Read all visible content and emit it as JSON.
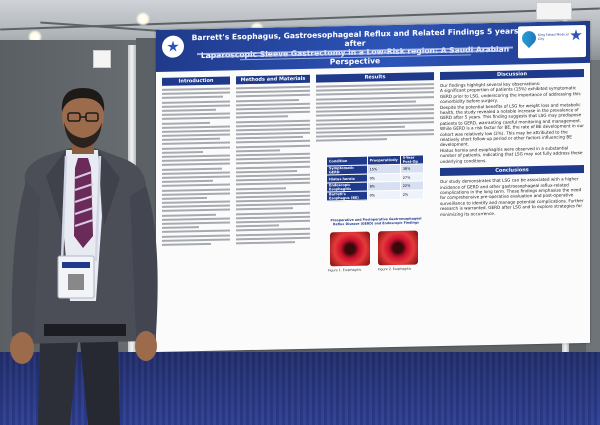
{
  "poster": {
    "title_line1": "Barrett's Esophagus, Gastroesophageal Reflux and Related Findings 5 years after",
    "title_line2": "Laparoscopic Sleeve Gastrectomy in a Low-Risk region: A Saudi Arabian Perspective",
    "sections": {
      "intro": "Introduction",
      "methods": "Methods and Materials",
      "results": "Results",
      "discussion": "Discussion",
      "conclusions": "Conclusions"
    },
    "results_text": "During the 5th post-op year, endoscopy (ECE 5 years ago; 109 potential patients). This resulted in the same: Ch: 5 years ago 5 years ago ... Prevalence ... (57.8%) 6 endoscopy ... The prevalence of BE is ... and the prevalence ... LSG without ... 36 Asian ... The endoscopy ...",
    "discussion_text": [
      "Our findings highlight several key observations:",
      "A significant proportion of patients (15%) exhibited symptomatic GERD prior to LSG, underscoring the importance of addressing this comorbidity before surgery.",
      "Despite the potential benefits of LSG for weight loss and metabolic health, the study revealed a notable increase in the prevalence of GERD after 5 years. This finding suggests that LSG may predispose patients to GERD, warranting careful monitoring and management.",
      "While GERD is a risk factor for BE, the rate of BE development in our cohort was relatively low (2%). This may be attributed to the relatively short follow-up period or other factors influencing BE development.",
      "Hiatus hernia and esophagitis were observed in a substantial number of patients, indicating that LSG may not fully address these underlying conditions."
    ],
    "conclusion_text": "Our study demonstrates that LSG can be associated with a higher incidence of GERD and other gastroesophageal reflux-related complications in the long term. These findings emphasize the need for comprehensive pre-operative evaluation and post-operative surveillance to identify and manage potential complications. Further research is warranted. GERD after LSG and to explore strategies for minimizing its occurrence.",
    "table": {
      "headers": [
        "Condition",
        "Preoperatively",
        "5-Year Post-Op"
      ],
      "rows": [
        [
          "Symptomatic GERD",
          "15%",
          "38%"
        ],
        [
          "Hiatus hernia",
          "9%",
          "27%"
        ],
        [
          "Endoscopic Esophagitis",
          "8%",
          "22%"
        ],
        [
          "Barrett's Esophagus (BE)",
          "0%",
          "2%"
        ]
      ]
    },
    "figure_caption": "Preoperative and Postoperative Gastroesophageal Reflux Disease (GERD) and Endoscopic Findings",
    "figure_labels": [
      "Figure 1. Esophagitis",
      "Figure 2. Esophagitis"
    ],
    "logo_right_text": "King Fahad Medical City"
  },
  "colors": {
    "header_blue": "#1f3a8a",
    "floor_blue": "#2f3f92",
    "endoscopy_red": "#c8102e"
  }
}
